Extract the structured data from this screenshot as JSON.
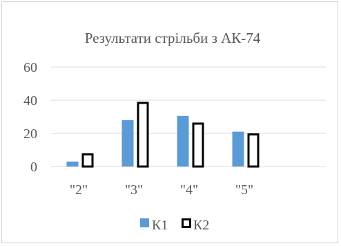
{
  "chart_data": {
    "type": "bar",
    "title": "Результати стрільби з АК-74",
    "categories": [
      "\"2\"",
      "\"3\"",
      "\"4\"",
      "\"5\""
    ],
    "series": [
      {
        "name": "К1",
        "values": [
          3,
          28,
          30.5,
          21
        ],
        "color": "#5b9bd5",
        "style": "filled"
      },
      {
        "name": "К2",
        "values": [
          8,
          39,
          26.5,
          20
        ],
        "color": "#000000",
        "style": "outline"
      }
    ],
    "ylim": [
      0,
      60
    ],
    "yticks": [
      "0",
      "20",
      "40",
      "60"
    ],
    "ytick_values": [
      0,
      20,
      40,
      60
    ],
    "grid": true,
    "legend_position": "bottom"
  }
}
